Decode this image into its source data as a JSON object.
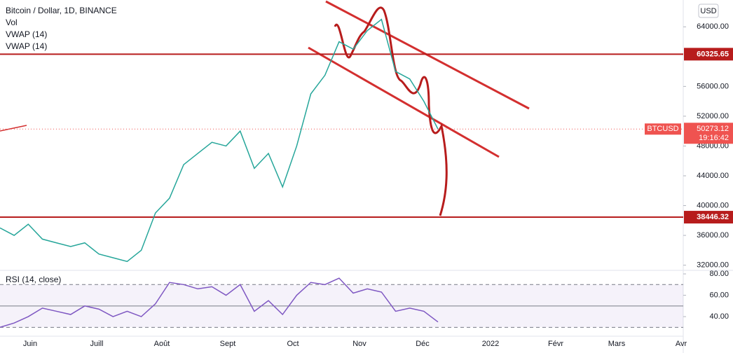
{
  "header": {
    "title": "Bitcoin / Dollar, 1D, BINANCE",
    "indicators": [
      "Vol",
      "VWAP (14)",
      "VWAP (14)"
    ],
    "currency": "USD"
  },
  "time_axis": {
    "labels": [
      "Juin",
      "Juill",
      "Août",
      "Sept",
      "Oct",
      "Nov",
      "Déc",
      "2022",
      "Févr",
      "Mars",
      "Avr"
    ]
  },
  "chart_data": [
    {
      "type": "line",
      "name": "BTCUSD",
      "color": "#26a69a",
      "values": [
        37000,
        36000,
        37500,
        35500,
        35000,
        34500,
        35000,
        33500,
        33000,
        32500,
        34000,
        39000,
        41000,
        45500,
        47000,
        48500,
        48000,
        50000,
        45000,
        47000,
        42500,
        48000,
        55000,
        57500,
        62000,
        61000,
        63500,
        65000,
        58000,
        57000,
        54000,
        50273.12
      ],
      "countdown": "19:16:42",
      "levels": [
        60325.65,
        38446.32
      ],
      "ylim": [
        31400,
        67600
      ],
      "yticks": [
        {
          "value": 32000,
          "label": "32000.00"
        },
        {
          "value": 36000,
          "label": "36000.00"
        },
        {
          "value": 40000,
          "label": "40000.00"
        },
        {
          "value": 44000,
          "label": "44000.00"
        },
        {
          "value": 48000,
          "label": "48000.00"
        },
        {
          "value": 52000,
          "label": "52000.00"
        },
        {
          "value": 56000,
          "label": "56000.00"
        },
        {
          "value": 64000,
          "label": "64000.00"
        }
      ]
    },
    {
      "type": "line",
      "title": "RSI (14, close)",
      "color": "#7e57c2",
      "values": [
        30,
        34,
        40,
        48,
        45,
        42,
        50,
        47,
        40,
        45,
        40,
        52,
        72,
        70,
        66,
        68,
        60,
        70,
        45,
        55,
        42,
        60,
        72,
        70,
        76,
        62,
        66,
        63,
        45,
        48,
        45,
        35
      ],
      "bands": [
        30,
        70
      ],
      "mid": 50,
      "ylim": [
        23,
        82
      ],
      "yticks": [
        {
          "value": 40,
          "label": "40.00"
        },
        {
          "value": 60,
          "label": "60.00"
        },
        {
          "value": 80,
          "label": "80.00"
        }
      ]
    }
  ]
}
